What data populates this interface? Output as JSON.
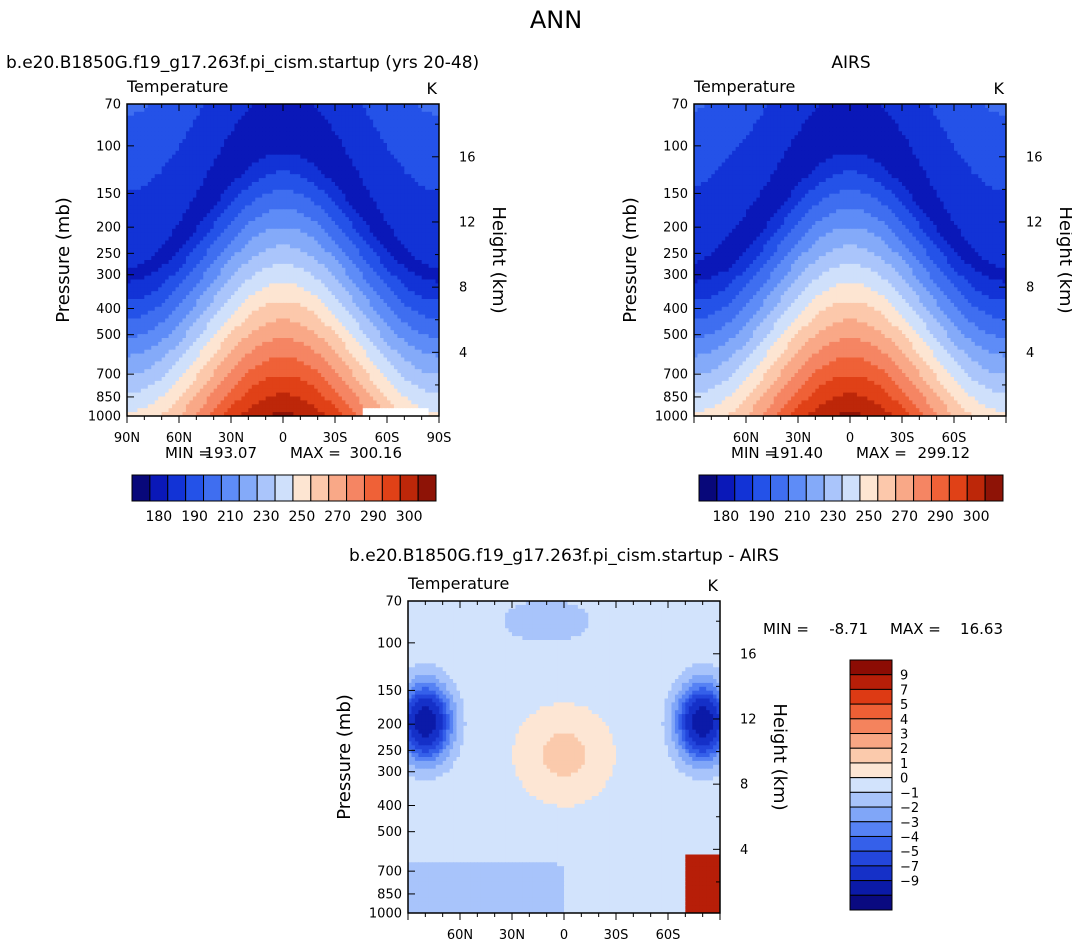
{
  "figure": {
    "title": "ANN",
    "diff_title": "b.e20.B1850G.f19_g17.263f.pi_cism.startup - AIRS"
  },
  "colors": {
    "temperature_scale": [
      "#08087a",
      "#0a18b8",
      "#1233d6",
      "#2452e8",
      "#3f6ef0",
      "#5e8cf7",
      "#84aaf9",
      "#aac5fb",
      "#cfe0fb",
      "#fde5d2",
      "#fcc8ab",
      "#f9a887",
      "#f58563",
      "#ef6137",
      "#e04117",
      "#bd2709",
      "#8e1306"
    ],
    "difference_scale": [
      "#0a0a80",
      "#0b1aa8",
      "#1530c8",
      "#2346dc",
      "#3560ea",
      "#5682f4",
      "#80a6f8",
      "#a8c4fb",
      "#d2e3fc",
      "#fde6d4",
      "#fbcaac",
      "#f8a684",
      "#f4835d",
      "#ee5f35",
      "#dd3a14",
      "#b71e08",
      "#8c0c04"
    ]
  },
  "chart_data": [
    {
      "type": "heatmap",
      "subtitle": "b.e20.B1850G.f19_g17.263f.pi_cism.startup (yrs 20-48)",
      "variable": "Temperature",
      "units": "K",
      "xlabel": "",
      "ylabel": "Pressure (mb)",
      "ylabel_right": "Height (km)",
      "x_ticks": [
        "90N",
        "60N",
        "30N",
        "0",
        "30S",
        "60S",
        "90S"
      ],
      "y_ticks": [
        70,
        100,
        150,
        200,
        250,
        300,
        400,
        500,
        700,
        850,
        1000
      ],
      "y_ticks_right": [
        4,
        8,
        12,
        16
      ],
      "ylim": [
        1000,
        70
      ],
      "min": 193.07,
      "max": 300.16,
      "min_label": "MIN =",
      "max_label": "MAX =",
      "colorbar_labels": [
        "180",
        "190",
        "210",
        "230",
        "250",
        "270",
        "290",
        "300"
      ],
      "has_missing_region": true
    },
    {
      "type": "heatmap",
      "subtitle": "AIRS",
      "variable": "Temperature",
      "units": "K",
      "xlabel": "",
      "ylabel": "Pressure (mb)",
      "ylabel_right": "Height (km)",
      "x_ticks": [
        "60N",
        "30N",
        "0",
        "30S",
        "60S"
      ],
      "y_ticks": [
        70,
        100,
        150,
        200,
        250,
        300,
        400,
        500,
        700,
        850,
        1000
      ],
      "y_ticks_right": [
        4,
        8,
        12,
        16
      ],
      "ylim": [
        1000,
        70
      ],
      "min": 191.4,
      "max": 299.12,
      "min_label": "MIN =",
      "max_label": "MAX =",
      "colorbar_labels": [
        "180",
        "190",
        "210",
        "230",
        "250",
        "270",
        "290",
        "300"
      ]
    },
    {
      "type": "heatmap",
      "subtitle": "b.e20.B1850G.f19_g17.263f.pi_cism.startup - AIRS",
      "variable": "Temperature",
      "units": "K",
      "xlabel": "",
      "ylabel": "Pressure (mb)",
      "ylabel_right": "Height (km)",
      "x_ticks": [
        "60N",
        "30N",
        "0",
        "30S",
        "60S"
      ],
      "y_ticks": [
        70,
        100,
        150,
        200,
        250,
        300,
        400,
        500,
        700,
        850,
        1000
      ],
      "y_ticks_right": [
        4,
        8,
        12,
        16
      ],
      "ylim": [
        1000,
        70
      ],
      "min": -8.71,
      "max": 16.63,
      "min_label": "MIN =",
      "max_label": "MAX =",
      "colorbar_labels": [
        "9",
        "7",
        "5",
        "4",
        "3",
        "2",
        "1",
        "0",
        "−1",
        "−2",
        "−3",
        "−4",
        "−5",
        "−7",
        "−9"
      ]
    }
  ]
}
